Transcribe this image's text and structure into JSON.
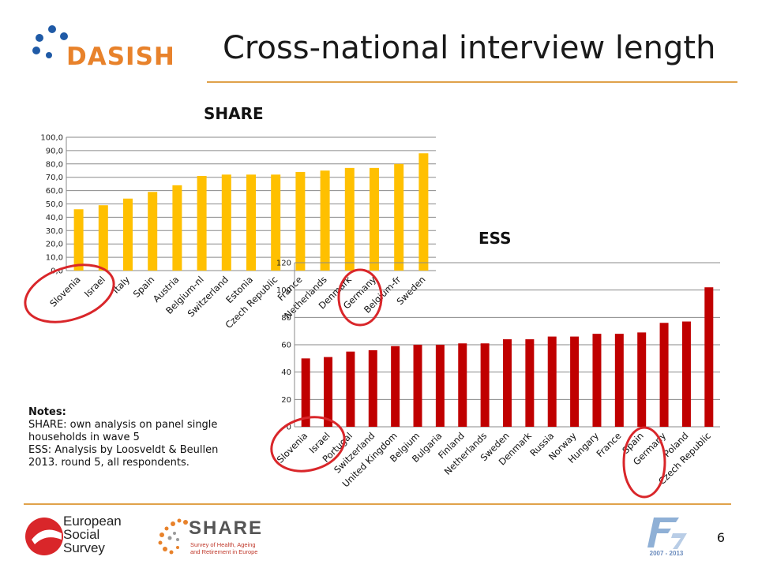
{
  "header": {
    "title": "Cross-national interview length",
    "logo_text": "DASISH"
  },
  "notes": {
    "heading": "Notes:",
    "lines": [
      "SHARE: own analysis on panel single households in wave 5",
      "ESS: Analysis by Loosveldt & Beullen 2013. round 5, all respondents."
    ]
  },
  "footer": {
    "ess_logo": [
      "European",
      "Social",
      "Survey"
    ],
    "share_logo": "SHARE",
    "share_tagline": [
      "Survey of Health, Ageing",
      "and Retirement in Europe"
    ],
    "fp7_years": "2007 - 2013",
    "page_number": "6"
  },
  "colors": {
    "share_bar": "#ffc000",
    "ess_bar": "#c00000",
    "highlight_circle": "#d9262a",
    "rule": "#e0a24a"
  },
  "chart_data": [
    {
      "type": "bar",
      "title": "SHARE",
      "categories": [
        "Slovenia",
        "Israel",
        "Italy",
        "Spain",
        "Austria",
        "Belgium-nl",
        "Switzerland",
        "Estonia",
        "Czech Republic",
        "France",
        "Netherlands",
        "Denmark",
        "Germany",
        "Belgium-fr",
        "Sweden"
      ],
      "values": [
        46,
        49,
        54,
        59,
        64,
        71,
        72,
        72,
        72,
        74,
        75,
        77,
        77,
        80,
        88
      ],
      "ylim": [
        0,
        100
      ],
      "yticks": [
        "0,0",
        "10,0",
        "20,0",
        "30,0",
        "40,0",
        "50,0",
        "60,0",
        "70,0",
        "80,0",
        "90,0",
        "100,0"
      ],
      "grid": true,
      "highlighted": [
        "Slovenia",
        "Germany"
      ]
    },
    {
      "type": "bar",
      "title": "ESS",
      "categories": [
        "Slovenia",
        "Israel",
        "Portugal",
        "Switzerland",
        "United Kingdom",
        "Belgium",
        "Bulgaria",
        "Finland",
        "Netherlands",
        "Sweden",
        "Denmark",
        "Russia",
        "Norway",
        "Hungary",
        "France",
        "Spain",
        "Germany",
        "Poland",
        "Czech Republic"
      ],
      "values": [
        50,
        51,
        55,
        56,
        59,
        60,
        60,
        61,
        61,
        64,
        64,
        66,
        66,
        68,
        68,
        69,
        76,
        77,
        102
      ],
      "ylim": [
        0,
        120
      ],
      "yticks": [
        "0",
        "20",
        "40",
        "60",
        "80",
        "100",
        "120"
      ],
      "grid": true,
      "highlighted": [
        "Slovenia",
        "Germany"
      ]
    }
  ]
}
